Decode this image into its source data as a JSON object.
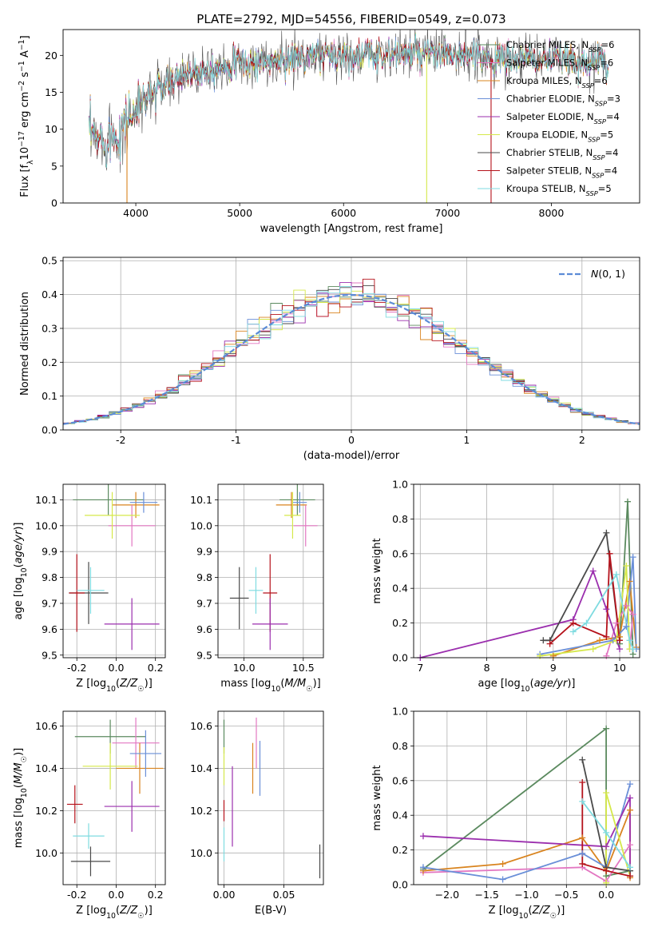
{
  "title": "PLATE=2792, MJD=54556, FIBERID=0549, z=0.073",
  "colors": {
    "chabrier_miles": "#5b8a5f",
    "salpeter_miles": "#e377c2",
    "kroupa_miles": "#d9841f",
    "chabrier_elodie": "#6a8fd8",
    "salpeter_elodie": "#9b2fae",
    "kroupa_elodie": "#d5e84a",
    "chabrier_stelib": "#4a4a4a",
    "salpeter_stelib": "#b5121b",
    "kroupa_stelib": "#7fdbe0",
    "gaussian": "#5b8bd6"
  },
  "chart_data": [
    {
      "id": "spectrum",
      "type": "line",
      "xlabel": "wavelength [Angstrom, rest frame]",
      "ylabel": "Flux [f_λ 10^-17 erg cm^-2 s^-1 A^-1]",
      "xlim": [
        3300,
        8850
      ],
      "ylim": [
        0,
        23.5
      ],
      "xticks": [
        4000,
        5000,
        6000,
        7000,
        8000
      ],
      "yticks": [
        0,
        5,
        10,
        15,
        20
      ],
      "legend_position": "top-right",
      "legend": [
        {
          "base": "Chabrier MILES, N",
          "sub": "SSP",
          "tail": "=6",
          "color": "chabrier_miles"
        },
        {
          "base": "Salpeter MILES, N",
          "sub": "SSP",
          "tail": "=6",
          "color": "salpeter_miles"
        },
        {
          "base": "Kroupa MILES, N",
          "sub": "SSP",
          "tail": "=6",
          "color": "kroupa_miles"
        },
        {
          "base": "Chabrier ELODIE, N",
          "sub": "SSP",
          "tail": "=3",
          "color": "chabrier_elodie"
        },
        {
          "base": "Salpeter ELODIE, N",
          "sub": "SSP",
          "tail": "=4",
          "color": "salpeter_elodie"
        },
        {
          "base": "Kroupa ELODIE, N",
          "sub": "SSP",
          "tail": "=5",
          "color": "kroupa_elodie"
        },
        {
          "base": "Chabrier STELIB, N",
          "sub": "SSP",
          "tail": "=4",
          "color": "chabrier_stelib"
        },
        {
          "base": "Salpeter STELIB, N",
          "sub": "SSP",
          "tail": "=4",
          "color": "salpeter_stelib"
        },
        {
          "base": "Kroupa STELIB, N",
          "sub": "SSP",
          "tail": "=5",
          "color": "kroupa_stelib"
        }
      ],
      "continuum": [
        [
          3550,
          9.5
        ],
        [
          3650,
          8.5
        ],
        [
          3800,
          9.0
        ],
        [
          3900,
          11.0
        ],
        [
          4000,
          12.5
        ],
        [
          4100,
          14.5
        ],
        [
          4300,
          16.0
        ],
        [
          4500,
          17.5
        ],
        [
          4800,
          18.5
        ],
        [
          5000,
          19.0
        ],
        [
          5200,
          19.0
        ],
        [
          5500,
          19.5
        ],
        [
          5800,
          20.0
        ],
        [
          6000,
          20.0
        ],
        [
          6500,
          20.2
        ],
        [
          7000,
          20.0
        ],
        [
          7500,
          19.5
        ],
        [
          8000,
          19.5
        ],
        [
          8500,
          19.0
        ],
        [
          8550,
          18.0
        ]
      ],
      "drops": [
        {
          "x": 3915,
          "y": 0,
          "color": "kroupa_miles"
        },
        {
          "x": 6800,
          "y": 0,
          "color": "kroupa_elodie"
        },
        {
          "x": 7420,
          "y": 0,
          "color": "salpeter_stelib"
        }
      ]
    },
    {
      "id": "residuals",
      "type": "histogram",
      "xlabel": "(data-model)/error",
      "ylabel": "Normed distribution",
      "xlim": [
        -2.5,
        2.5
      ],
      "ylim": [
        0,
        0.51
      ],
      "xticks": [
        -2,
        -1,
        0,
        1,
        2
      ],
      "yticks": [
        0.0,
        0.1,
        0.2,
        0.3,
        0.4,
        0.5
      ],
      "grid": true,
      "bin_width": 0.1,
      "gaussian_label": "N(0, 1)",
      "legend_position": "top-right"
    },
    {
      "id": "age_vs_Z",
      "type": "errorbar",
      "xlabel": "Z [log10(Z/Z☉)]",
      "ylabel": "age  [log10(age/yr)]",
      "xlim": [
        -0.27,
        0.25
      ],
      "ylim": [
        9.49,
        10.16
      ],
      "xticks": [
        -0.2,
        0.0,
        0.2
      ],
      "yticks": [
        9.5,
        9.6,
        9.7,
        9.8,
        9.9,
        10.0,
        10.1
      ],
      "points": [
        {
          "x": -0.04,
          "xerr": 0.18,
          "y": 10.1,
          "yerr": 0.06,
          "color": "chabrier_miles"
        },
        {
          "x": 0.1,
          "xerr": 0.12,
          "y": 10.08,
          "yerr": 0.05,
          "color": "kroupa_miles"
        },
        {
          "x": 0.14,
          "xerr": 0.07,
          "y": 10.09,
          "yerr": 0.04,
          "color": "chabrier_elodie"
        },
        {
          "x": 0.08,
          "xerr": 0.12,
          "y": 10.0,
          "yerr": 0.08,
          "color": "salpeter_miles"
        },
        {
          "x": -0.02,
          "xerr": 0.14,
          "y": 10.04,
          "yerr": 0.09,
          "color": "kroupa_elodie"
        },
        {
          "x": -0.14,
          "xerr": 0.1,
          "y": 9.74,
          "yerr": 0.12,
          "color": "chabrier_stelib"
        },
        {
          "x": -0.2,
          "xerr": 0.04,
          "y": 9.74,
          "yerr": 0.15,
          "color": "salpeter_stelib"
        },
        {
          "x": -0.13,
          "xerr": 0.07,
          "y": 9.75,
          "yerr": 0.09,
          "color": "kroupa_stelib"
        },
        {
          "x": 0.08,
          "xerr": 0.14,
          "y": 9.62,
          "yerr": 0.1,
          "color": "salpeter_elodie"
        }
      ]
    },
    {
      "id": "age_vs_mass",
      "type": "errorbar",
      "xlabel": "mass [log10(M/M☉)]",
      "ylabel": "",
      "xlim": [
        9.78,
        10.67
      ],
      "ylim": [
        9.49,
        10.16
      ],
      "xticks": [
        10.0,
        10.5
      ],
      "yticks": [
        9.5,
        9.6,
        9.7,
        9.8,
        9.9,
        10.0,
        10.1
      ],
      "points": [
        {
          "x": 10.45,
          "xerr": 0.15,
          "y": 10.1,
          "yerr": 0.06,
          "color": "chabrier_miles"
        },
        {
          "x": 10.4,
          "xerr": 0.13,
          "y": 10.08,
          "yerr": 0.05,
          "color": "kroupa_miles"
        },
        {
          "x": 10.47,
          "xerr": 0.06,
          "y": 10.09,
          "yerr": 0.04,
          "color": "chabrier_elodie"
        },
        {
          "x": 10.52,
          "xerr": 0.1,
          "y": 10.0,
          "yerr": 0.08,
          "color": "salpeter_miles"
        },
        {
          "x": 10.41,
          "xerr": 0.07,
          "y": 10.04,
          "yerr": 0.09,
          "color": "kroupa_elodie"
        },
        {
          "x": 9.96,
          "xerr": 0.08,
          "y": 9.72,
          "yerr": 0.12,
          "color": "chabrier_stelib"
        },
        {
          "x": 10.22,
          "xerr": 0.06,
          "y": 9.74,
          "yerr": 0.15,
          "color": "salpeter_stelib"
        },
        {
          "x": 10.1,
          "xerr": 0.06,
          "y": 9.75,
          "yerr": 0.09,
          "color": "kroupa_stelib"
        },
        {
          "x": 10.22,
          "xerr": 0.15,
          "y": 9.62,
          "yerr": 0.1,
          "color": "salpeter_elodie"
        }
      ]
    },
    {
      "id": "weight_vs_age",
      "type": "line",
      "xlabel": "age  [log10(age/yr)]",
      "ylabel": "mass weight",
      "xlim": [
        6.9,
        10.3
      ],
      "ylim": [
        0.0,
        1.0
      ],
      "xticks": [
        7,
        8,
        9,
        10
      ],
      "yticks": [
        0.0,
        0.2,
        0.4,
        0.6,
        0.8,
        1.0
      ],
      "series": [
        {
          "color": "chabrier_miles",
          "points": [
            [
              10.0,
              0.08
            ],
            [
              10.12,
              0.9
            ],
            [
              10.2,
              0.02
            ]
          ]
        },
        {
          "color": "salpeter_miles",
          "points": [
            [
              9.8,
              0.01
            ],
            [
              9.95,
              0.2
            ],
            [
              10.1,
              0.3
            ],
            [
              10.2,
              0.25
            ],
            [
              10.15,
              0.05
            ]
          ]
        },
        {
          "color": "kroupa_miles",
          "points": [
            [
              9.0,
              0.01
            ],
            [
              9.7,
              0.1
            ],
            [
              10.0,
              0.12
            ],
            [
              10.15,
              0.44
            ],
            [
              10.25,
              0.06
            ]
          ]
        },
        {
          "color": "chabrier_elodie",
          "points": [
            [
              8.8,
              0.02
            ],
            [
              9.9,
              0.1
            ],
            [
              10.1,
              0.18
            ],
            [
              10.2,
              0.58
            ],
            [
              10.25,
              0.05
            ]
          ]
        },
        {
          "color": "salpeter_elodie",
          "points": [
            [
              7.0,
              0.0
            ],
            [
              9.3,
              0.22
            ],
            [
              9.6,
              0.5
            ],
            [
              9.8,
              0.28
            ],
            [
              10.0,
              0.05
            ]
          ]
        },
        {
          "color": "kroupa_elodie",
          "points": [
            [
              8.8,
              0.01
            ],
            [
              9.6,
              0.05
            ],
            [
              9.95,
              0.1
            ],
            [
              10.1,
              0.53
            ],
            [
              10.15,
              0.05
            ]
          ]
        },
        {
          "color": "chabrier_stelib",
          "points": [
            [
              8.85,
              0.1
            ],
            [
              8.95,
              0.1
            ],
            [
              9.8,
              0.72
            ],
            [
              10.0,
              0.1
            ]
          ]
        },
        {
          "color": "salpeter_stelib",
          "points": [
            [
              8.95,
              0.08
            ],
            [
              9.3,
              0.2
            ],
            [
              9.8,
              0.12
            ],
            [
              9.85,
              0.6
            ],
            [
              10.0,
              0.1
            ]
          ]
        },
        {
          "color": "kroupa_stelib",
          "points": [
            [
              9.3,
              0.15
            ],
            [
              9.5,
              0.2
            ],
            [
              9.95,
              0.48
            ],
            [
              10.15,
              0.1
            ],
            [
              10.2,
              0.05
            ]
          ]
        }
      ]
    },
    {
      "id": "mass_vs_Z",
      "type": "errorbar",
      "xlabel": "Z [log10(Z/Z☉)]",
      "ylabel": "mass [log10(M/M☉)]",
      "xlim": [
        -0.27,
        0.25
      ],
      "ylim": [
        9.85,
        10.67
      ],
      "xticks": [
        -0.2,
        0.0,
        0.2
      ],
      "yticks": [
        10.0,
        10.2,
        10.4,
        10.6
      ],
      "points": [
        {
          "x": -0.03,
          "xerr": 0.18,
          "y": 10.55,
          "yerr": 0.08,
          "color": "chabrier_miles"
        },
        {
          "x": 0.1,
          "xerr": 0.12,
          "y": 10.52,
          "yerr": 0.12,
          "color": "salpeter_miles"
        },
        {
          "x": 0.12,
          "xerr": 0.12,
          "y": 10.4,
          "yerr": 0.12,
          "color": "kroupa_miles"
        },
        {
          "x": 0.15,
          "xerr": 0.08,
          "y": 10.47,
          "yerr": 0.11,
          "color": "chabrier_elodie"
        },
        {
          "x": -0.03,
          "xerr": 0.14,
          "y": 10.41,
          "yerr": 0.11,
          "color": "kroupa_elodie"
        },
        {
          "x": 0.08,
          "xerr": 0.14,
          "y": 10.22,
          "yerr": 0.12,
          "color": "salpeter_elodie"
        },
        {
          "x": -0.21,
          "xerr": 0.04,
          "y": 10.23,
          "yerr": 0.09,
          "color": "salpeter_stelib"
        },
        {
          "x": -0.14,
          "xerr": 0.08,
          "y": 10.08,
          "yerr": 0.06,
          "color": "kroupa_stelib"
        },
        {
          "x": -0.13,
          "xerr": 0.1,
          "y": 9.96,
          "yerr": 0.07,
          "color": "chabrier_stelib"
        }
      ]
    },
    {
      "id": "mass_vs_ebv",
      "type": "errorbar",
      "xlabel": "E(B-V)",
      "ylabel": "",
      "xlim": [
        -0.005,
        0.083
      ],
      "ylim": [
        9.85,
        10.67
      ],
      "xticks": [
        0.0,
        0.05
      ],
      "yticks": [
        10.0,
        10.2,
        10.4,
        10.6
      ],
      "points": [
        {
          "x": 0.0,
          "xerr": 0,
          "y": 10.55,
          "yerr": 0.08,
          "color": "chabrier_miles"
        },
        {
          "x": 0.027,
          "xerr": 0,
          "y": 10.52,
          "yerr": 0.12,
          "color": "salpeter_miles"
        },
        {
          "x": 0.024,
          "xerr": 0,
          "y": 10.4,
          "yerr": 0.12,
          "color": "kroupa_miles"
        },
        {
          "x": 0.03,
          "xerr": 0,
          "y": 10.4,
          "yerr": 0.13,
          "color": "chabrier_elodie"
        },
        {
          "x": 0.0,
          "xerr": 0,
          "y": 10.41,
          "yerr": 0.09,
          "color": "kroupa_elodie"
        },
        {
          "x": 0.007,
          "xerr": 0,
          "y": 10.22,
          "yerr": 0.19,
          "color": "salpeter_elodie"
        },
        {
          "x": 0.0,
          "xerr": 0,
          "y": 10.2,
          "yerr": 0.05,
          "color": "salpeter_stelib"
        },
        {
          "x": 0.0,
          "xerr": 0,
          "y": 10.04,
          "yerr": 0.08,
          "color": "kroupa_stelib"
        },
        {
          "x": 0.08,
          "xerr": 0,
          "y": 9.96,
          "yerr": 0.08,
          "color": "chabrier_stelib"
        }
      ]
    },
    {
      "id": "weight_vs_Z",
      "type": "line",
      "xlabel": "Z [log10(Z/Z☉)]",
      "ylabel": "mass weight",
      "xlim": [
        -2.42,
        0.42
      ],
      "ylim": [
        0.0,
        1.0
      ],
      "xticks": [
        -2.0,
        -1.5,
        -1.0,
        -0.5,
        0.0
      ],
      "yticks": [
        0.0,
        0.2,
        0.4,
        0.6,
        0.8,
        1.0
      ],
      "series": [
        {
          "color": "chabrier_miles",
          "points": [
            [
              -2.3,
              0.09
            ],
            [
              0.0,
              0.9
            ],
            [
              0.0,
              0.05
            ],
            [
              0.3,
              0.08
            ]
          ]
        },
        {
          "color": "salpeter_miles",
          "points": [
            [
              -2.3,
              0.07
            ],
            [
              -0.3,
              0.1
            ],
            [
              0.0,
              0.02
            ],
            [
              0.3,
              0.23
            ]
          ]
        },
        {
          "color": "kroupa_miles",
          "points": [
            [
              -2.3,
              0.08
            ],
            [
              -1.3,
              0.12
            ],
            [
              -0.3,
              0.27
            ],
            [
              0.0,
              0.08
            ],
            [
              0.3,
              0.43
            ],
            [
              0.3,
              0.04
            ]
          ]
        },
        {
          "color": "chabrier_elodie",
          "points": [
            [
              -2.3,
              0.1
            ],
            [
              -1.3,
              0.03
            ],
            [
              -0.3,
              0.18
            ],
            [
              0.0,
              0.1
            ],
            [
              0.3,
              0.58
            ]
          ]
        },
        {
          "color": "salpeter_elodie",
          "points": [
            [
              -2.3,
              0.28
            ],
            [
              0.0,
              0.22
            ],
            [
              0.3,
              0.5
            ],
            [
              0.3,
              0.05
            ]
          ]
        },
        {
          "color": "kroupa_elodie",
          "points": [
            [
              0.0,
              0.01
            ],
            [
              0.0,
              0.53
            ],
            [
              0.3,
              0.05
            ]
          ]
        },
        {
          "color": "chabrier_stelib",
          "points": [
            [
              -0.3,
              0.72
            ],
            [
              0.0,
              0.1
            ],
            [
              0.3,
              0.08
            ]
          ]
        },
        {
          "color": "salpeter_stelib",
          "points": [
            [
              -0.3,
              0.59
            ],
            [
              -0.3,
              0.12
            ],
            [
              0.0,
              0.08
            ],
            [
              0.3,
              0.05
            ]
          ]
        },
        {
          "color": "kroupa_stelib",
          "points": [
            [
              -0.3,
              0.48
            ],
            [
              0.0,
              0.3
            ],
            [
              0.3,
              0.1
            ]
          ]
        }
      ]
    }
  ]
}
